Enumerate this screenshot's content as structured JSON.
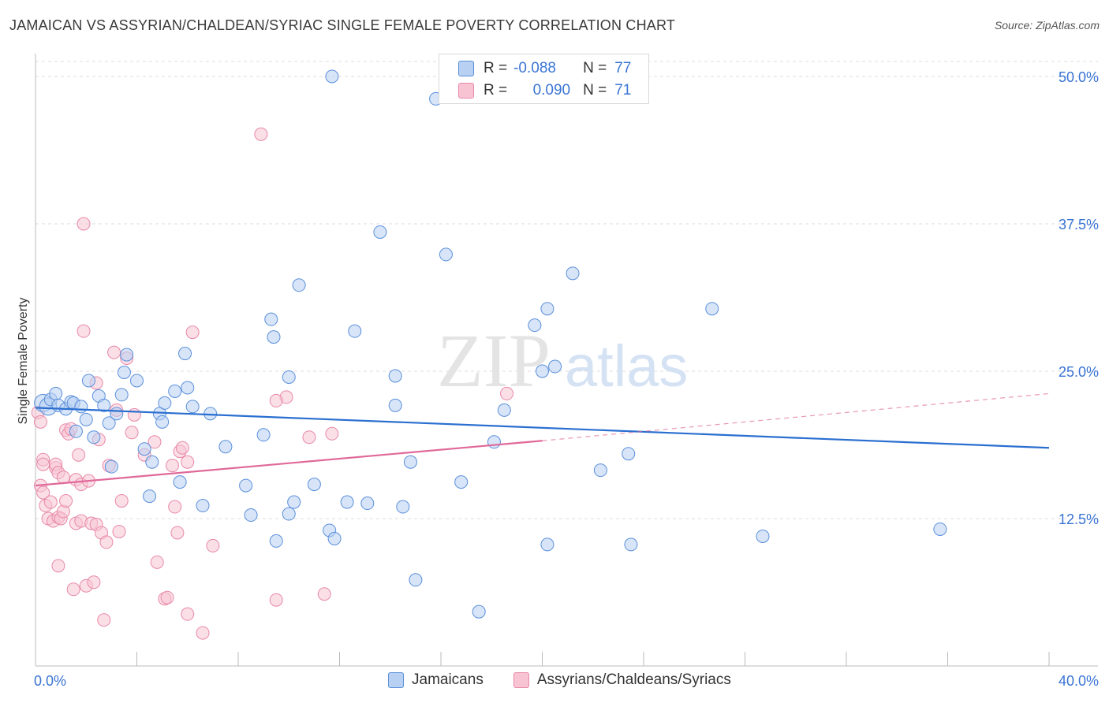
{
  "title": "JAMAICAN VS ASSYRIAN/CHALDEAN/SYRIAC SINGLE FEMALE POVERTY CORRELATION CHART",
  "source": "Source: ZipAtlas.com",
  "watermark": {
    "zip": "ZIP",
    "atlas": "atlas"
  },
  "legend": {
    "r_label": "R =",
    "n_label": "N =",
    "series1": {
      "r": "-0.088",
      "n": "77"
    },
    "series2": {
      "r": "0.090",
      "n": "71"
    }
  },
  "colors": {
    "blue_fill": "#b8d0f2",
    "blue_stroke": "#5a8fdb",
    "blue_line": "#2a6fd0",
    "pink_fill": "#f8c4d4",
    "pink_stroke": "#e888a8",
    "pink_line": "#e0699a",
    "axis_text": "#3a74d4",
    "grid": "#dddddd"
  },
  "chart_data": {
    "type": "scatter",
    "title": "JAMAICAN VS ASSYRIAN/CHALDEAN/SYRIAC SINGLE FEMALE POVERTY CORRELATION CHART",
    "xlabel": "",
    "ylabel": "Single Female Poverty",
    "xlim": [
      0,
      40
    ],
    "ylim": [
      0,
      50
    ],
    "x_tick_labels": [
      "0.0%",
      "40.0%"
    ],
    "y_ticks": [
      12.5,
      25.0,
      37.5,
      50.0
    ],
    "y_tick_labels": [
      "12.5%",
      "25.0%",
      "37.5%",
      "50.0%"
    ],
    "series": [
      {
        "name": "Jamaicans",
        "r": -0.088,
        "n": 77,
        "trend": {
          "x": [
            0,
            40
          ],
          "y": [
            21.9,
            18.5
          ]
        },
        "points": [
          [
            0.3,
            22.3
          ],
          [
            0.5,
            22.0
          ],
          [
            0.6,
            22.6
          ],
          [
            0.8,
            23.1
          ],
          [
            0.9,
            22.1
          ],
          [
            1.2,
            21.8
          ],
          [
            1.4,
            22.4
          ],
          [
            1.5,
            22.3
          ],
          [
            1.6,
            19.9
          ],
          [
            1.8,
            22.0
          ],
          [
            2.0,
            20.9
          ],
          [
            2.1,
            24.2
          ],
          [
            2.3,
            19.4
          ],
          [
            2.5,
            22.9
          ],
          [
            2.7,
            22.1
          ],
          [
            2.9,
            20.6
          ],
          [
            3.0,
            16.9
          ],
          [
            3.2,
            21.4
          ],
          [
            3.4,
            23.0
          ],
          [
            3.6,
            26.4
          ],
          [
            3.5,
            24.9
          ],
          [
            4.0,
            24.2
          ],
          [
            4.3,
            18.4
          ],
          [
            4.5,
            14.4
          ],
          [
            4.6,
            17.3
          ],
          [
            4.9,
            21.4
          ],
          [
            5.0,
            20.7
          ],
          [
            5.1,
            22.3
          ],
          [
            5.5,
            23.3
          ],
          [
            5.7,
            15.6
          ],
          [
            5.9,
            26.5
          ],
          [
            6.0,
            23.6
          ],
          [
            6.2,
            22.0
          ],
          [
            6.6,
            13.6
          ],
          [
            6.9,
            21.4
          ],
          [
            7.5,
            18.6
          ],
          [
            8.5,
            12.8
          ],
          [
            8.3,
            15.3
          ],
          [
            9.0,
            19.6
          ],
          [
            9.3,
            29.4
          ],
          [
            9.4,
            27.9
          ],
          [
            9.5,
            10.6
          ],
          [
            10.0,
            24.5
          ],
          [
            10.2,
            13.9
          ],
          [
            10.4,
            32.3
          ],
          [
            10.0,
            12.9
          ],
          [
            11.0,
            15.4
          ],
          [
            11.6,
            11.5
          ],
          [
            11.8,
            10.8
          ],
          [
            12.3,
            13.9
          ],
          [
            12.6,
            28.4
          ],
          [
            13.1,
            13.8
          ],
          [
            13.6,
            36.8
          ],
          [
            11.7,
            50.0
          ],
          [
            14.2,
            22.1
          ],
          [
            14.2,
            24.6
          ],
          [
            14.5,
            13.5
          ],
          [
            14.8,
            17.3
          ],
          [
            15.0,
            7.3
          ],
          [
            15.8,
            48.1
          ],
          [
            16.2,
            34.9
          ],
          [
            16.8,
            15.6
          ],
          [
            17.5,
            4.6
          ],
          [
            18.1,
            19.0
          ],
          [
            18.5,
            21.7
          ],
          [
            19.7,
            28.9
          ],
          [
            20.0,
            25.0
          ],
          [
            20.2,
            30.3
          ],
          [
            20.5,
            25.4
          ],
          [
            20.2,
            10.3
          ],
          [
            21.2,
            33.3
          ],
          [
            22.3,
            16.6
          ],
          [
            23.4,
            18.0
          ],
          [
            23.5,
            10.3
          ],
          [
            26.7,
            30.3
          ],
          [
            28.7,
            11.0
          ],
          [
            35.7,
            11.6
          ]
        ]
      },
      {
        "name": "Assyrians/Chaldeans/Syriacs",
        "r": 0.09,
        "n": 71,
        "trend_solid": {
          "x": [
            0,
            20.0
          ],
          "y": [
            15.3,
            19.1
          ]
        },
        "trend_dashed": {
          "x": [
            20.0,
            40
          ],
          "y": [
            19.1,
            23.1
          ]
        },
        "points": [
          [
            0.1,
            21.5
          ],
          [
            0.2,
            20.7
          ],
          [
            0.2,
            15.3
          ],
          [
            0.3,
            17.5
          ],
          [
            0.3,
            17.1
          ],
          [
            0.3,
            14.7
          ],
          [
            0.4,
            13.6
          ],
          [
            0.5,
            12.5
          ],
          [
            0.6,
            13.9
          ],
          [
            0.7,
            12.3
          ],
          [
            0.8,
            16.8
          ],
          [
            0.8,
            17.1
          ],
          [
            0.9,
            16.4
          ],
          [
            0.9,
            12.6
          ],
          [
            0.9,
            8.5
          ],
          [
            1.0,
            12.5
          ],
          [
            1.1,
            13.1
          ],
          [
            1.1,
            16.0
          ],
          [
            1.2,
            14.0
          ],
          [
            1.2,
            20.0
          ],
          [
            1.3,
            19.7
          ],
          [
            1.4,
            20.1
          ],
          [
            1.5,
            6.5
          ],
          [
            1.6,
            12.1
          ],
          [
            1.6,
            15.8
          ],
          [
            1.7,
            17.9
          ],
          [
            1.8,
            12.3
          ],
          [
            1.8,
            15.4
          ],
          [
            1.9,
            28.4
          ],
          [
            1.9,
            37.5
          ],
          [
            2.0,
            6.8
          ],
          [
            2.1,
            15.7
          ],
          [
            2.2,
            12.1
          ],
          [
            2.3,
            7.1
          ],
          [
            2.4,
            12.0
          ],
          [
            2.4,
            24.0
          ],
          [
            2.5,
            19.2
          ],
          [
            2.6,
            11.3
          ],
          [
            2.7,
            3.9
          ],
          [
            2.8,
            10.5
          ],
          [
            2.9,
            17.0
          ],
          [
            3.1,
            26.6
          ],
          [
            3.2,
            21.7
          ],
          [
            3.3,
            11.4
          ],
          [
            3.4,
            14.0
          ],
          [
            3.6,
            26.1
          ],
          [
            3.8,
            19.8
          ],
          [
            3.9,
            21.3
          ],
          [
            4.3,
            17.9
          ],
          [
            4.7,
            19.0
          ],
          [
            4.8,
            8.8
          ],
          [
            5.1,
            5.7
          ],
          [
            5.2,
            5.8
          ],
          [
            5.4,
            17.0
          ],
          [
            5.5,
            13.5
          ],
          [
            5.6,
            11.3
          ],
          [
            5.7,
            18.2
          ],
          [
            5.8,
            18.5
          ],
          [
            6.0,
            17.3
          ],
          [
            6.0,
            4.4
          ],
          [
            6.2,
            28.3
          ],
          [
            6.6,
            2.8
          ],
          [
            7.0,
            10.2
          ],
          [
            8.9,
            45.1
          ],
          [
            9.5,
            5.6
          ],
          [
            9.9,
            22.8
          ],
          [
            10.8,
            19.4
          ],
          [
            11.4,
            6.1
          ],
          [
            11.7,
            19.7
          ],
          [
            18.6,
            23.1
          ],
          [
            9.5,
            22.5
          ]
        ]
      }
    ]
  },
  "bottom_legend": {
    "series1": "Jamaicans",
    "series2": "Assyrians/Chaldeans/Syriacs"
  }
}
